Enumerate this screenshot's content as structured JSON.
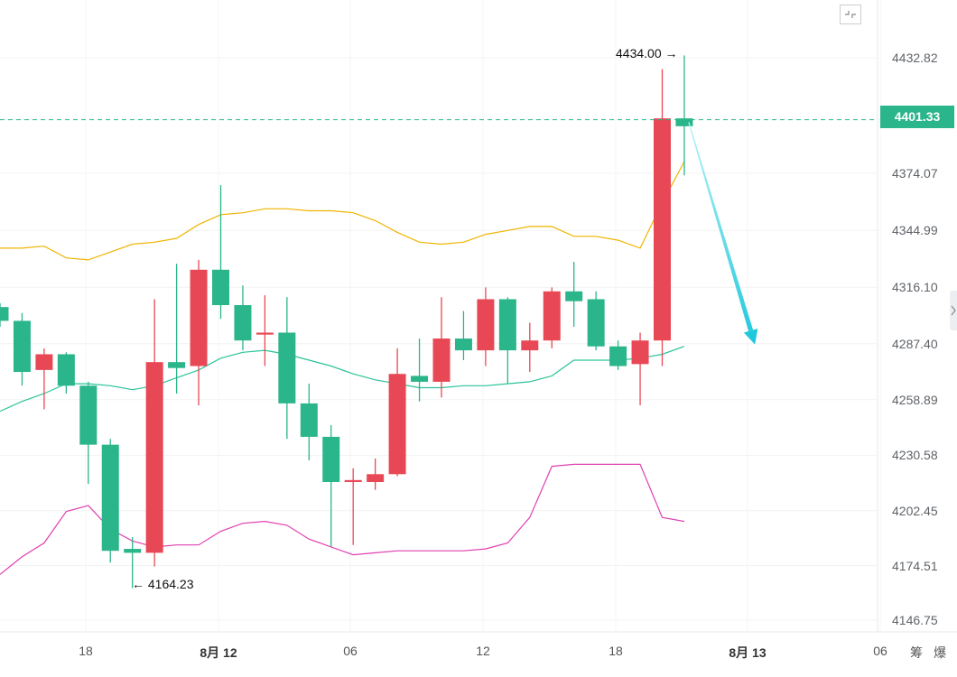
{
  "chart_data": {
    "type": "candlestick",
    "y_axis": {
      "ticks": [
        "4432.82",
        "4374.07",
        "4344.99",
        "4316.10",
        "4287.40",
        "4258.89",
        "4230.58",
        "4202.45",
        "4174.51",
        "4146.75"
      ],
      "range": [
        4140,
        4445
      ]
    },
    "x_axis": {
      "ticks": [
        {
          "label": "18",
          "bold": false
        },
        {
          "label": "8月 12",
          "bold": true
        },
        {
          "label": "06",
          "bold": false
        },
        {
          "label": "12",
          "bold": false
        },
        {
          "label": "18",
          "bold": false
        },
        {
          "label": "8月 13",
          "bold": true
        },
        {
          "label": "06",
          "bold": false
        }
      ]
    },
    "current_price": "4401.33",
    "high_label": "4434.00",
    "low_label": "4164.23",
    "up_color": "#e84855",
    "down_color": "#2bb58a",
    "candles": [
      {
        "o": 4306,
        "h": 4308,
        "c": 4299,
        "l": 4296
      },
      {
        "o": 4299,
        "h": 4303,
        "c": 4273,
        "l": 4266
      },
      {
        "o": 4274,
        "h": 4285,
        "c": 4282,
        "l": 4254
      },
      {
        "o": 4282,
        "h": 4283,
        "c": 4266,
        "l": 4262
      },
      {
        "o": 4266,
        "h": 4268,
        "c": 4236,
        "l": 4216
      },
      {
        "o": 4236,
        "h": 4239,
        "c": 4182,
        "l": 4176
      },
      {
        "o": 4183,
        "h": 4189,
        "c": 4181,
        "l": 4163
      },
      {
        "o": 4181,
        "h": 4310,
        "c": 4278,
        "l": 4174
      },
      {
        "o": 4278,
        "h": 4328,
        "c": 4275,
        "l": 4262
      },
      {
        "o": 4276,
        "h": 4330,
        "c": 4325,
        "l": 4256
      },
      {
        "o": 4325,
        "h": 4368,
        "c": 4307,
        "l": 4300
      },
      {
        "o": 4307,
        "h": 4317,
        "c": 4289,
        "l": 4284
      },
      {
        "o": 4292,
        "h": 4312,
        "c": 4293,
        "l": 4276
      },
      {
        "o": 4293,
        "h": 4311,
        "c": 4257,
        "l": 4239
      },
      {
        "o": 4257,
        "h": 4267,
        "c": 4240,
        "l": 4228
      },
      {
        "o": 4240,
        "h": 4246,
        "c": 4217,
        "l": 4184
      },
      {
        "o": 4217,
        "h": 4224,
        "c": 4218,
        "l": 4185
      },
      {
        "o": 4217,
        "h": 4229,
        "c": 4221,
        "l": 4213
      },
      {
        "o": 4221,
        "h": 4285,
        "c": 4272,
        "l": 4220
      },
      {
        "o": 4271,
        "h": 4290,
        "c": 4268,
        "l": 4258
      },
      {
        "o": 4268,
        "h": 4311,
        "c": 4290,
        "l": 4260
      },
      {
        "o": 4290,
        "h": 4304,
        "c": 4284,
        "l": 4279
      },
      {
        "o": 4284,
        "h": 4316,
        "c": 4310,
        "l": 4276
      },
      {
        "o": 4310,
        "h": 4311,
        "c": 4284,
        "l": 4267
      },
      {
        "o": 4284,
        "h": 4298,
        "c": 4289,
        "l": 4273
      },
      {
        "o": 4289,
        "h": 4316,
        "c": 4314,
        "l": 4285
      },
      {
        "o": 4314,
        "h": 4329,
        "c": 4309,
        "l": 4296
      },
      {
        "o": 4310,
        "h": 4314,
        "c": 4286,
        "l": 4284
      },
      {
        "o": 4286,
        "h": 4289,
        "c": 4276,
        "l": 4274
      },
      {
        "o": 4277,
        "h": 4293,
        "c": 4289,
        "l": 4256
      },
      {
        "o": 4289,
        "h": 4427,
        "c": 4402,
        "l": 4276
      },
      {
        "o": 4402,
        "h": 4434,
        "c": 4398,
        "l": 4373
      }
    ],
    "bb_upper": [
      4336,
      4336,
      4337,
      4331,
      4330,
      4334,
      4338,
      4339,
      4341,
      4348,
      4353,
      4354,
      4356,
      4356,
      4355,
      4355,
      4354,
      4350,
      4344,
      4339,
      4338,
      4339,
      4343,
      4345,
      4347,
      4347,
      4342,
      4342,
      4340,
      4336,
      4359,
      4380
    ],
    "bb_middle": [
      4253,
      4258,
      4262,
      4267,
      4267,
      4266,
      4264,
      4266,
      4270,
      4274,
      4280,
      4283,
      4284,
      4282,
      4279,
      4276,
      4272,
      4269,
      4267,
      4265,
      4265,
      4266,
      4266,
      4267,
      4268,
      4271,
      4279,
      4279,
      4279,
      4280,
      4282,
      4286
    ],
    "bb_lower": [
      4170,
      4179,
      4186,
      4202,
      4205,
      4193,
      4187,
      4184,
      4185,
      4185,
      4192,
      4196,
      4197,
      4195,
      4188,
      4184,
      4180,
      4181,
      4182,
      4182,
      4182,
      4182,
      4183,
      4186,
      4199,
      4225,
      4226,
      4226,
      4226,
      4226,
      4199,
      4197
    ],
    "projection": {
      "from": [
        31.2,
        4400
      ],
      "to": [
        34.2,
        4287
      ]
    }
  },
  "footer": {
    "chars": [
      "筹",
      "爆"
    ]
  },
  "icons": {
    "fullscreen": "fullscreen-exit-icon",
    "side_tab": "chevron-right-icon"
  }
}
